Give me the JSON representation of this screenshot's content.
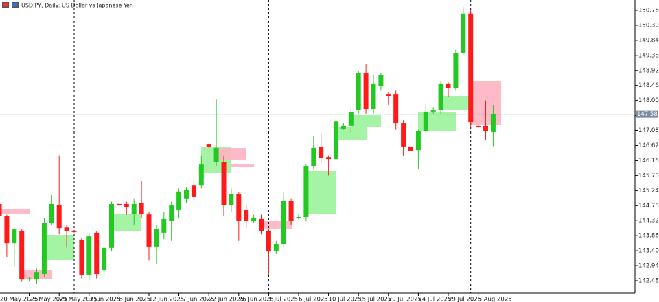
{
  "chart_data": {
    "type": "candlestick",
    "title": "USDJPY, Daily: US Dollar vs Japanese Yen",
    "categories": [
      "20 May 2025",
      null,
      null,
      null,
      "25 May 2025",
      null,
      null,
      null,
      "29 May 2025",
      null,
      null,
      null,
      "3 Jun 2025",
      null,
      null,
      null,
      "8 Jun 2025",
      null,
      null,
      null,
      "12 Jun 2025",
      null,
      null,
      null,
      "17 Jun 2025",
      null,
      null,
      null,
      "22 Jun 2025",
      null,
      null,
      null,
      "26 Jun 2025",
      null,
      null,
      null,
      "1 Jul 2025",
      null,
      null,
      null,
      "6 Jul 2025",
      null,
      null,
      null,
      "10 Jul 2025",
      null,
      null,
      null,
      "15 Jul 2025",
      null,
      null,
      null,
      "20 Jul 2025",
      null,
      null,
      null,
      "24 Jul 2025",
      null,
      null,
      null,
      "29 Jul 2025",
      null,
      null,
      null,
      "3 Aug 2025",
      null,
      null
    ],
    "open": [
      144.83,
      144.45,
      143.63,
      144.01,
      142.52,
      142.52,
      142.69,
      144.26,
      144.79,
      144.11,
      143.99,
      143.74,
      142.65,
      143.95,
      142.79,
      143.49,
      144.83,
      144.83,
      144.53,
      144.87,
      144.51,
      143.53,
      143.95,
      144.32,
      144.66,
      145.0,
      145.41,
      145.41,
      146.65,
      146.11,
      146.11,
      144.79,
      145.14,
      144.66,
      144.32,
      144.37,
      144.01,
      143.38,
      143.61,
      144.93,
      144.41,
      144.43,
      145.98,
      146.59,
      146.27,
      146.21,
      147.13,
      147.22,
      147.7,
      148.83,
      147.74,
      148.45,
      148.2,
      148.2,
      147.3,
      146.59,
      146.48,
      147.05,
      147.66,
      147.72,
      148.52,
      148.39,
      149.44,
      150.66,
      147.22,
      147.22,
      147.03
    ],
    "high": [
      144.9,
      144.5,
      144.1,
      144.05,
      142.6,
      142.85,
      144.4,
      145.1,
      146.3,
      144.2,
      144.0,
      143.8,
      143.95,
      144.0,
      143.5,
      144.9,
      144.85,
      144.9,
      145.0,
      145.52,
      144.6,
      144.2,
      144.6,
      144.9,
      145.3,
      145.35,
      145.6,
      146.3,
      146.68,
      148.03,
      146.3,
      145.3,
      145.2,
      144.8,
      144.5,
      144.5,
      144.05,
      143.7,
      145.2,
      145.0,
      144.5,
      146.04,
      146.9,
      147.0,
      146.3,
      147.4,
      147.3,
      147.8,
      148.9,
      149.1,
      148.8,
      148.85,
      148.25,
      148.3,
      147.4,
      146.7,
      147.1,
      147.9,
      147.8,
      148.6,
      148.55,
      149.55,
      150.86,
      150.76,
      147.25,
      148.0,
      147.85
    ],
    "low": [
      144.4,
      143.21,
      142.9,
      142.45,
      142.45,
      142.4,
      142.6,
      144.2,
      143.9,
      143.5,
      143.95,
      142.55,
      142.5,
      142.55,
      142.6,
      143.4,
      144.78,
      144.5,
      144.2,
      144.4,
      143.1,
      143.0,
      143.75,
      143.7,
      144.4,
      144.85,
      144.9,
      145.3,
      146.55,
      146.0,
      144.47,
      144.6,
      143.7,
      144.1,
      144.25,
      143.9,
      142.65,
      143.3,
      143.5,
      144.2,
      144.35,
      144.3,
      145.9,
      146.1,
      145.7,
      146.1,
      147.1,
      147.0,
      147.6,
      147.6,
      147.6,
      148.3,
      147.87,
      147.1,
      146.3,
      146.1,
      145.9,
      147.0,
      147.6,
      147.6,
      148.1,
      148.3,
      149.4,
      147.2,
      147.15,
      146.8,
      146.6
    ],
    "close": [
      144.47,
      143.63,
      144.05,
      142.52,
      142.55,
      142.75,
      144.26,
      144.83,
      144.09,
      143.99,
      143.98,
      142.65,
      143.84,
      142.69,
      143.49,
      144.83,
      144.8,
      144.74,
      144.83,
      144.53,
      143.53,
      144.07,
      144.37,
      144.79,
      145.21,
      145.25,
      145.06,
      146.04,
      146.57,
      146.55,
      144.79,
      145.14,
      144.32,
      144.32,
      144.41,
      144.01,
      143.38,
      143.61,
      144.93,
      144.32,
      144.43,
      145.98,
      146.55,
      146.25,
      146.21,
      147.36,
      147.22,
      147.64,
      148.83,
      147.74,
      148.52,
      148.77,
      148.14,
      147.3,
      146.59,
      146.46,
      147.05,
      147.66,
      147.72,
      148.52,
      148.39,
      149.44,
      150.66,
      147.34,
      147.18,
      147.07,
      147.58
    ],
    "up_color": "#22c922",
    "down_color": "#ff1a1a",
    "current_price": 147.581,
    "current_price_color": "#7a8ba0",
    "ylim": [
      142.103,
      151.074
    ],
    "yticks": [
      {
        "value": 150.76,
        "label": "150.760"
      },
      {
        "value": 150.3,
        "label": "150.300"
      },
      {
        "value": 149.84,
        "label": "149.840"
      },
      {
        "value": 149.38,
        "label": "149.380"
      },
      {
        "value": 148.92,
        "label": "148.920"
      },
      {
        "value": 148.46,
        "label": "148.460"
      },
      {
        "value": 148,
        "label": "148.000"
      },
      {
        "value": 147.54,
        "label": "147.540"
      },
      {
        "value": 147.08,
        "label": "147.080"
      },
      {
        "value": 146.62,
        "label": "146.620"
      },
      {
        "value": 146.16,
        "label": "146.160"
      },
      {
        "value": 145.7,
        "label": "145.700"
      },
      {
        "value": 145.24,
        "label": "145.240"
      },
      {
        "value": 144.78,
        "label": "144.780"
      },
      {
        "value": 144.32,
        "label": "144.320"
      },
      {
        "value": 143.86,
        "label": "143.860"
      },
      {
        "value": 143.4,
        "label": "143.400"
      },
      {
        "value": 142.94,
        "label": "142.940"
      },
      {
        "value": 142.48,
        "label": "142.480"
      }
    ],
    "grid": false
  }
}
